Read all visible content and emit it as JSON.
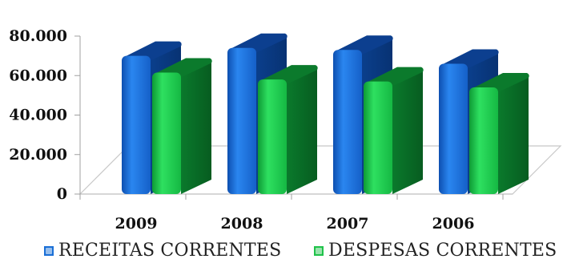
{
  "chart_data": {
    "type": "bar",
    "categories": [
      "2009",
      "2008",
      "2007",
      "2006"
    ],
    "series": [
      {
        "name": "RECEITAS CORRENTES",
        "values": [
          70000,
          74000,
          73000,
          66000
        ],
        "color": "#1a6fd6",
        "dark": "#0c3f8f"
      },
      {
        "name": "DESPESAS CORRENTES",
        "values": [
          61500,
          58000,
          57000,
          54000
        ],
        "color": "#20c24a",
        "dark": "#0b7a2c"
      }
    ],
    "yticks": [
      "0",
      "20.000",
      "40.000",
      "60.000",
      "80.000"
    ],
    "ylim": [
      0,
      80000
    ],
    "ytick_values": [
      0,
      20000,
      40000,
      60000,
      80000
    ],
    "legend_position": "bottom",
    "grid": false
  },
  "legend": {
    "item1": "RECEITAS CORRENTES",
    "item2": "DESPESAS CORRENTES"
  }
}
